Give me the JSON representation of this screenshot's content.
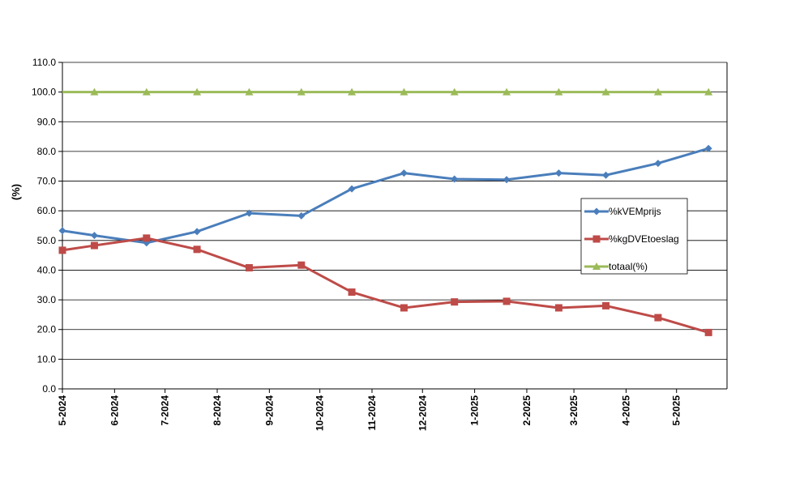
{
  "chart_data": {
    "type": "line",
    "title": "",
    "xlabel": "",
    "ylabel": "(%)",
    "ylim": [
      0,
      110
    ],
    "ytick_step": 10,
    "grid": true,
    "legend_position": "right",
    "x_tick_labels": [
      "5-2024",
      "6-2024",
      "7-2024",
      "8-2024",
      "9-2024",
      "10-2024",
      "11-2024",
      "12-2024",
      "1-2025",
      "2-2025",
      "3-2025",
      "4-2025",
      "5-2025"
    ],
    "x_range": [
      "2024-05-01",
      "2025-05-31"
    ],
    "series": [
      {
        "name": "%kVEMprijs",
        "color": "#4A7EBB",
        "marker": "diamond",
        "x": [
          "2024-05-01",
          "2024-05-20",
          "2024-06-20",
          "2024-07-20",
          "2024-08-20",
          "2024-09-20",
          "2024-10-20",
          "2024-11-20",
          "2024-12-20",
          "2025-01-20",
          "2025-02-20",
          "2025-03-20",
          "2025-04-20",
          "2025-05-20"
        ],
        "values": [
          53.3,
          51.7,
          49.2,
          53.0,
          59.2,
          58.3,
          67.4,
          72.7,
          70.7,
          70.5,
          72.7,
          72.0,
          76.0,
          81.0
        ]
      },
      {
        "name": "%kgDVEtoeslag",
        "color": "#BE4B48",
        "marker": "square",
        "x": [
          "2024-05-01",
          "2024-05-20",
          "2024-06-20",
          "2024-07-20",
          "2024-08-20",
          "2024-09-20",
          "2024-10-20",
          "2024-11-20",
          "2024-12-20",
          "2025-01-20",
          "2025-02-20",
          "2025-03-20",
          "2025-04-20",
          "2025-05-20"
        ],
        "values": [
          46.7,
          48.3,
          50.8,
          47.0,
          40.8,
          41.7,
          32.6,
          27.3,
          29.3,
          29.5,
          27.3,
          28.0,
          24.0,
          19.0
        ]
      },
      {
        "name": "totaal(%)",
        "color": "#9BBB59",
        "marker": "triangle",
        "x": [
          "2024-05-01",
          "2024-05-20",
          "2024-06-20",
          "2024-07-20",
          "2024-08-20",
          "2024-09-20",
          "2024-10-20",
          "2024-11-20",
          "2024-12-20",
          "2025-01-20",
          "2025-02-20",
          "2025-03-20",
          "2025-04-20",
          "2025-05-20"
        ],
        "values": [
          100,
          100,
          100,
          100,
          100,
          100,
          100,
          100,
          100,
          100,
          100,
          100,
          100,
          100
        ],
        "first_point_marker": false
      }
    ]
  }
}
